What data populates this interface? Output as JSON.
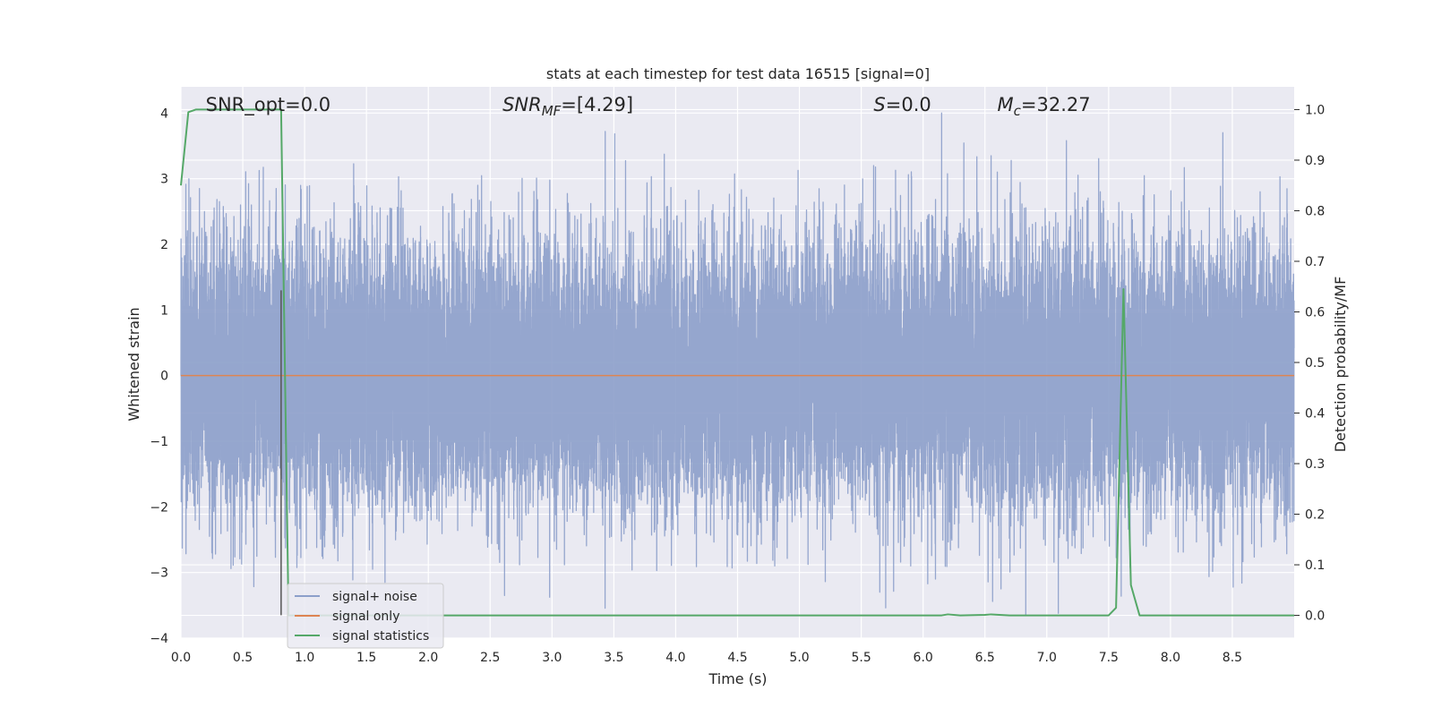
{
  "chart_data": {
    "type": "line",
    "title": "stats at each timestep for test data 16515 [signal=0]",
    "xlabel": "Time (s)",
    "ylabel": "Whitened strain",
    "y2label": "Detection probability/MF",
    "xlim": [
      0.0,
      9.0
    ],
    "ylim": [
      -4.0,
      4.4
    ],
    "y2lim": [
      -0.045,
      1.045
    ],
    "xticks": [
      0.0,
      0.5,
      1.0,
      1.5,
      2.0,
      2.5,
      3.0,
      3.5,
      4.0,
      4.5,
      5.0,
      5.5,
      6.0,
      6.5,
      7.0,
      7.5,
      8.0,
      8.5
    ],
    "xtick_labels": [
      "0.0",
      "0.5",
      "1.0",
      "1.5",
      "2.0",
      "2.5",
      "3.0",
      "3.5",
      "4.0",
      "4.5",
      "5.0",
      "5.5",
      "6.0",
      "6.5",
      "7.0",
      "7.5",
      "8.0",
      "8.5"
    ],
    "yticks": [
      4,
      3,
      2,
      1,
      0,
      -1,
      -2,
      -3,
      -4
    ],
    "ytick_labels": [
      "4",
      "3",
      "2",
      "1",
      "0",
      "−1",
      "−2",
      "−3",
      "−4"
    ],
    "y2ticks": [
      1.0,
      0.9,
      0.8,
      0.7,
      0.6,
      0.5,
      0.4,
      0.3,
      0.2,
      0.1,
      0.0
    ],
    "y2tick_labels": [
      "1.0",
      "0.9",
      "0.8",
      "0.7",
      "0.6",
      "0.5",
      "0.4",
      "0.3",
      "0.2",
      "0.1",
      "0.0"
    ],
    "grid": true,
    "legend_position": "lower-left",
    "annotations": [
      {
        "text": "SNR_opt=0.0",
        "x": 0.2
      },
      {
        "text": "SNR_MF=[4.29]",
        "x": 2.6
      },
      {
        "text": "S=0.0",
        "x": 5.6
      },
      {
        "text": "M_c=32.27",
        "x": 6.6
      }
    ],
    "vertical_marker_x": 0.81,
    "series": [
      {
        "name": "signal+ noise",
        "color": "#8c9fca",
        "axis": "left",
        "kind": "noise",
        "sample_rate": 2048,
        "sigma": 1.0,
        "peaks": [
          {
            "x": 0.15,
            "y": 2.85
          },
          {
            "x": 0.77,
            "y": 2.85
          },
          {
            "x": 0.82,
            "y": 2.95
          },
          {
            "x": 2.4,
            "y": 2.9
          },
          {
            "x": 3.43,
            "y": 3.72
          },
          {
            "x": 5.6,
            "y": 3.2
          },
          {
            "x": 6.15,
            "y": 4.0
          },
          {
            "x": 6.55,
            "y": 3.35
          },
          {
            "x": 6.6,
            "y": 3.1
          },
          {
            "x": 0.25,
            "y": -2.7
          },
          {
            "x": 1.65,
            "y": -3.15
          },
          {
            "x": 1.55,
            "y": -2.95
          },
          {
            "x": 5.65,
            "y": -3.3
          },
          {
            "x": 6.1,
            "y": -3.1
          },
          {
            "x": 6.63,
            "y": -3.25
          },
          {
            "x": 6.83,
            "y": -3.65
          },
          {
            "x": 5.9,
            "y": -2.9
          }
        ]
      },
      {
        "name": "signal only",
        "color": "#dd8452",
        "axis": "left",
        "x": [
          0.0,
          9.0
        ],
        "y": [
          0.0,
          0.0
        ]
      },
      {
        "name": "signal statistics",
        "color": "#55a868",
        "axis": "right",
        "x": [
          0.0,
          0.06,
          0.12,
          0.75,
          0.81,
          0.87,
          0.93,
          6.15,
          6.2,
          6.3,
          6.5,
          6.55,
          6.7,
          7.5,
          7.56,
          7.62,
          7.68,
          7.75,
          9.0
        ],
        "y": [
          0.85,
          0.995,
          1.0,
          1.0,
          1.0,
          0.0,
          0.0,
          0.0,
          0.002,
          0.0,
          0.001,
          0.002,
          0.0,
          0.0,
          0.015,
          0.645,
          0.06,
          0.0,
          0.0
        ]
      }
    ]
  }
}
